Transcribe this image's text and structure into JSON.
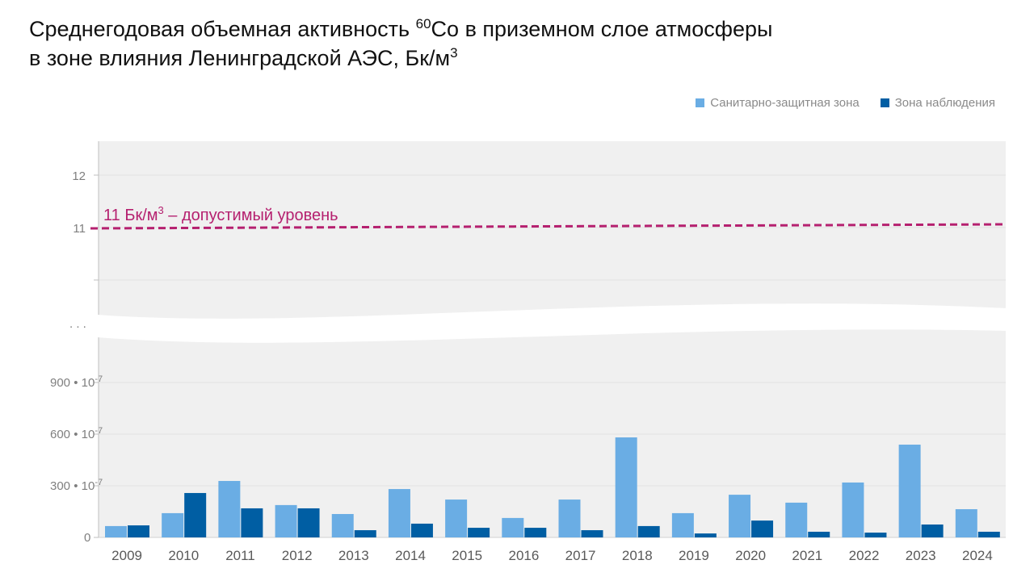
{
  "title": {
    "line1_pre": "Среднегодовая объемная активность ",
    "line1_sup": "60",
    "line1_post": "Co в приземном слое атмосферы",
    "line2_pre": "в зоне влияния Ленинградской АЭС, Бк/м",
    "line2_sup": "3"
  },
  "chart_data": {
    "type": "bar",
    "title": "Среднегодовая объемная активность 60Co в приземном слое атмосферы в зоне влияния Ленинградской АЭС, Бк/м3",
    "xlabel": "",
    "ylabel": "",
    "categories": [
      "2009",
      "2010",
      "2011",
      "2012",
      "2013",
      "2014",
      "2015",
      "2016",
      "2017",
      "2018",
      "2019",
      "2020",
      "2021",
      "2022",
      "2023",
      "2024"
    ],
    "series": [
      {
        "name": "Санитарно-защитная зона",
        "color": "#6aade4",
        "values": [
          66,
          141,
          328,
          188,
          136,
          281,
          220,
          113,
          220,
          581,
          141,
          248,
          202,
          319,
          539,
          164
        ]
      },
      {
        "name": "Зона наблюдения",
        "color": "#005ea3",
        "values": [
          70,
          258,
          169,
          169,
          42,
          80,
          56,
          56,
          42,
          66,
          23,
          98,
          33,
          28,
          75,
          33
        ]
      }
    ],
    "value_unit": "10^-7 Бк/м3",
    "ylim_lower": [
      0,
      1100
    ],
    "ylim_upper": [
      10,
      12.6
    ],
    "axis_break": true,
    "lower_ticks": [
      "0",
      "300",
      "600",
      "900"
    ],
    "tick_multiplier": "• 10",
    "tick_exponent": "-7",
    "upper_ticks": [
      "11",
      "12"
    ],
    "break_label": ". . .",
    "limit_line": {
      "value": 11,
      "label_pre": "11 Бк/м",
      "label_sup": "3",
      "label_post": " – допустимый уровень",
      "color": "#b5206f"
    },
    "legend_position": "top-right",
    "grid": true
  }
}
